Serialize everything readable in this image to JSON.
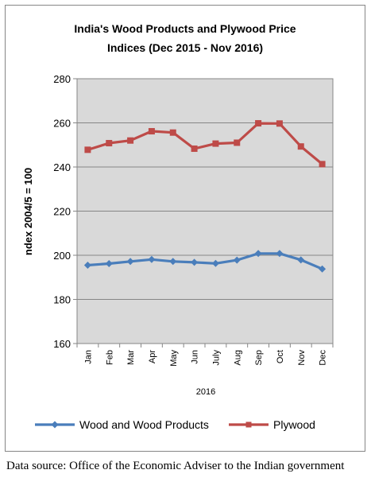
{
  "chart_data": {
    "type": "line",
    "title_lines": [
      "India's Wood Products and Plywood Price",
      "Indices (Dec 2015 - Nov 2016)"
    ],
    "ylabel": "ndex 2004/5 = 100",
    "xlabel": "2016",
    "categories": [
      "Jan",
      "Feb",
      "Mar",
      "Apr",
      "May",
      "Jun",
      "July",
      "Aug",
      "Sep",
      "Oct",
      "Nov",
      "Dec"
    ],
    "ylim": [
      160,
      280
    ],
    "yticks": [
      "160",
      "180",
      "200",
      "220",
      "240",
      "260",
      "280"
    ],
    "grid": true,
    "legend_position": "bottom",
    "series": [
      {
        "name": "Wood and Wood Products",
        "color": "#4a7ebb",
        "marker": "diamond",
        "values": [
          195.5,
          196.2,
          197.2,
          198.1,
          197.2,
          196.8,
          196.3,
          197.8,
          200.8,
          200.8,
          197.9,
          193.8
        ]
      },
      {
        "name": "Plywood",
        "color": "#be4b48",
        "marker": "square",
        "values": [
          247.8,
          250.8,
          252.0,
          256.2,
          255.6,
          248.3,
          250.6,
          251.0,
          259.8,
          259.7,
          249.3,
          241.3
        ]
      }
    ]
  },
  "source_note": "Data source: Office of the Economic Adviser to the Indian government"
}
